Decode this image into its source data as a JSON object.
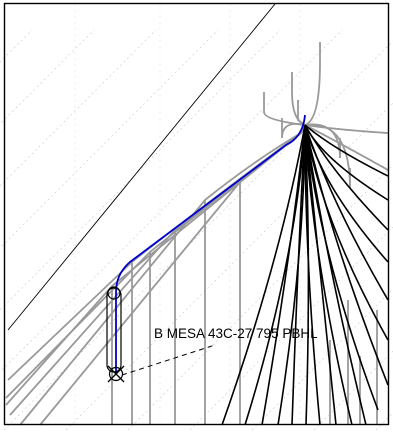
{
  "diagram": {
    "label": "B MESA 43C-27 795 PBHL",
    "colors": {
      "background": "#ffffff",
      "frame": "#000000",
      "highlight_well": "#0000cc",
      "gray_wells": "#999999",
      "black_wells": "#000000",
      "grid": "#c8c8c8",
      "diagonal_line": "#000000"
    },
    "icons": [
      "wellhead-circle-icon",
      "target-x-circle-icon"
    ]
  }
}
